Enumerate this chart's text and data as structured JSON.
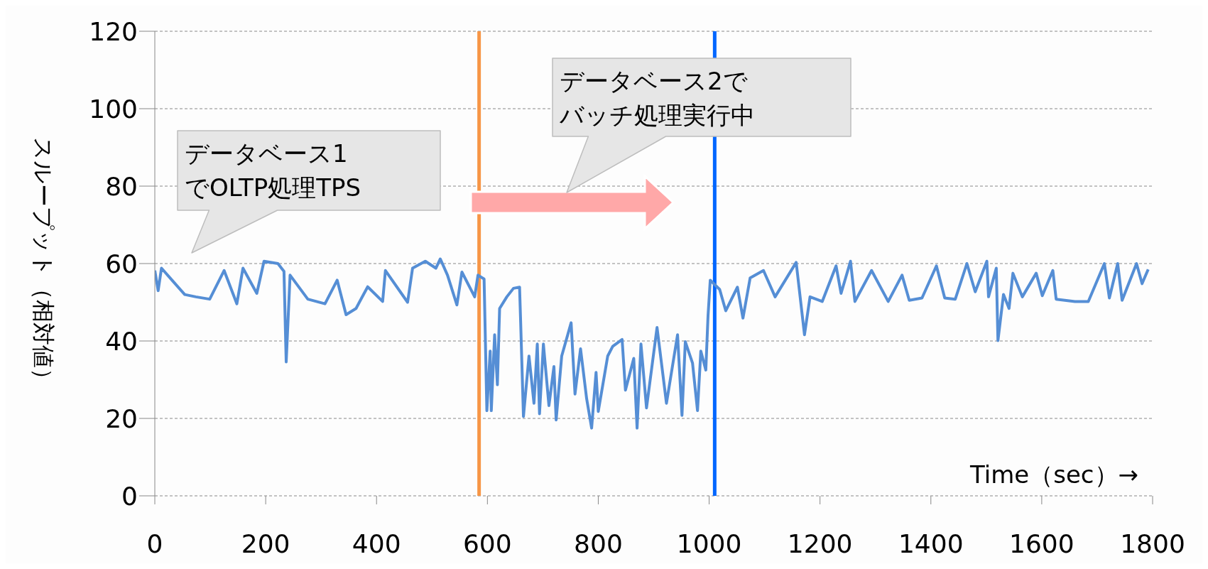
{
  "chart_data": {
    "type": "line",
    "xlabel": "Time（sec）→",
    "ylabel": "スループット（相対値）",
    "annotations": [
      "データベース1でOLTP処理TPS",
      "データベース2でバッチ処理実行中"
    ],
    "xlim": [
      0,
      1800
    ],
    "xticks": [
      0,
      200,
      400,
      600,
      800,
      1000,
      1200,
      1400,
      1600,
      1800
    ],
    "ylim": [
      0,
      120
    ],
    "yticks": [
      0,
      20,
      40,
      60,
      80,
      100,
      120
    ],
    "grid": "y",
    "marker": "none",
    "line_style": "solid",
    "ref_lines": [
      {
        "axis": "x",
        "value": 585,
        "color": "#f79646"
      },
      {
        "axis": "x",
        "value": 1010,
        "color": "#0066ff"
      }
    ],
    "series": [
      {
        "color": "#558ed5",
        "x": [
          0,
          6,
          12,
          31,
          54,
          74,
          99,
          125,
          148,
          159,
          184,
          197,
          222,
          233,
          237,
          244,
          276,
          307,
          329,
          345,
          363,
          384,
          411,
          416,
          456,
          465,
          488,
          507,
          515,
          528,
          545,
          554,
          577,
          583,
          594,
          599,
          605,
          607,
          613,
          618,
          622,
          635,
          647,
          658,
          660,
          665,
          675,
          684,
          690,
          694,
          701,
          711,
          720,
          724,
          734,
          751,
          758,
          768,
          779,
          788,
          796,
          800,
          817,
          826,
          843,
          849,
          864,
          870,
          877,
          887,
          906,
          923,
          943,
          951,
          957,
          970,
          979,
          985,
          994,
          998,
          1002,
          1019,
          1030,
          1051,
          1061,
          1074,
          1098,
          1119,
          1157,
          1172,
          1182,
          1204,
          1229,
          1238,
          1255,
          1263,
          1293,
          1323,
          1348,
          1361,
          1384,
          1410,
          1425,
          1444,
          1465,
          1480,
          1501,
          1504,
          1518,
          1521,
          1531,
          1541,
          1548,
          1565,
          1590,
          1601,
          1620,
          1626,
          1660,
          1684,
          1713,
          1722,
          1737,
          1745,
          1771,
          1781,
          1792
        ],
        "values": [
          58.2,
          53,
          58.8,
          55.7,
          52,
          51.4,
          50.8,
          58.2,
          49.6,
          58.8,
          52.3,
          60.6,
          60,
          58,
          34.6,
          57,
          50.8,
          49.6,
          55.7,
          46.8,
          48.4,
          54,
          50.2,
          58.2,
          50,
          58.8,
          60.6,
          58.8,
          61.2,
          57,
          49.3,
          57.8,
          51.4,
          57,
          56,
          22,
          37.4,
          22,
          41.6,
          28.7,
          48.4,
          51.4,
          53.6,
          53.9,
          44.7,
          20.5,
          36.1,
          23.9,
          39.2,
          21.2,
          39.2,
          23.3,
          33.4,
          19.6,
          36.1,
          44.7,
          26.3,
          38,
          25.1,
          17.5,
          31.9,
          21.8,
          36.1,
          38.6,
          40.4,
          27.3,
          35.5,
          17.5,
          39.2,
          22.7,
          43.5,
          23.9,
          41.6,
          20.8,
          39.8,
          34.3,
          22,
          37.4,
          32.5,
          46.5,
          55.7,
          53.3,
          47.8,
          53.9,
          45.9,
          56.3,
          58.2,
          51.4,
          60.3,
          41.6,
          51.4,
          50.2,
          59.4,
          52.3,
          60.6,
          50.2,
          58.2,
          50.2,
          57,
          50.5,
          51.1,
          59.4,
          51.1,
          50.8,
          60,
          52.7,
          60.6,
          51.4,
          58.8,
          40.1,
          52,
          48.4,
          57.5,
          51.4,
          57.5,
          51.7,
          58.2,
          50.8,
          50.2,
          50.2,
          60,
          51.1,
          60,
          50.5,
          60,
          54.8,
          58.5
        ]
      }
    ]
  }
}
